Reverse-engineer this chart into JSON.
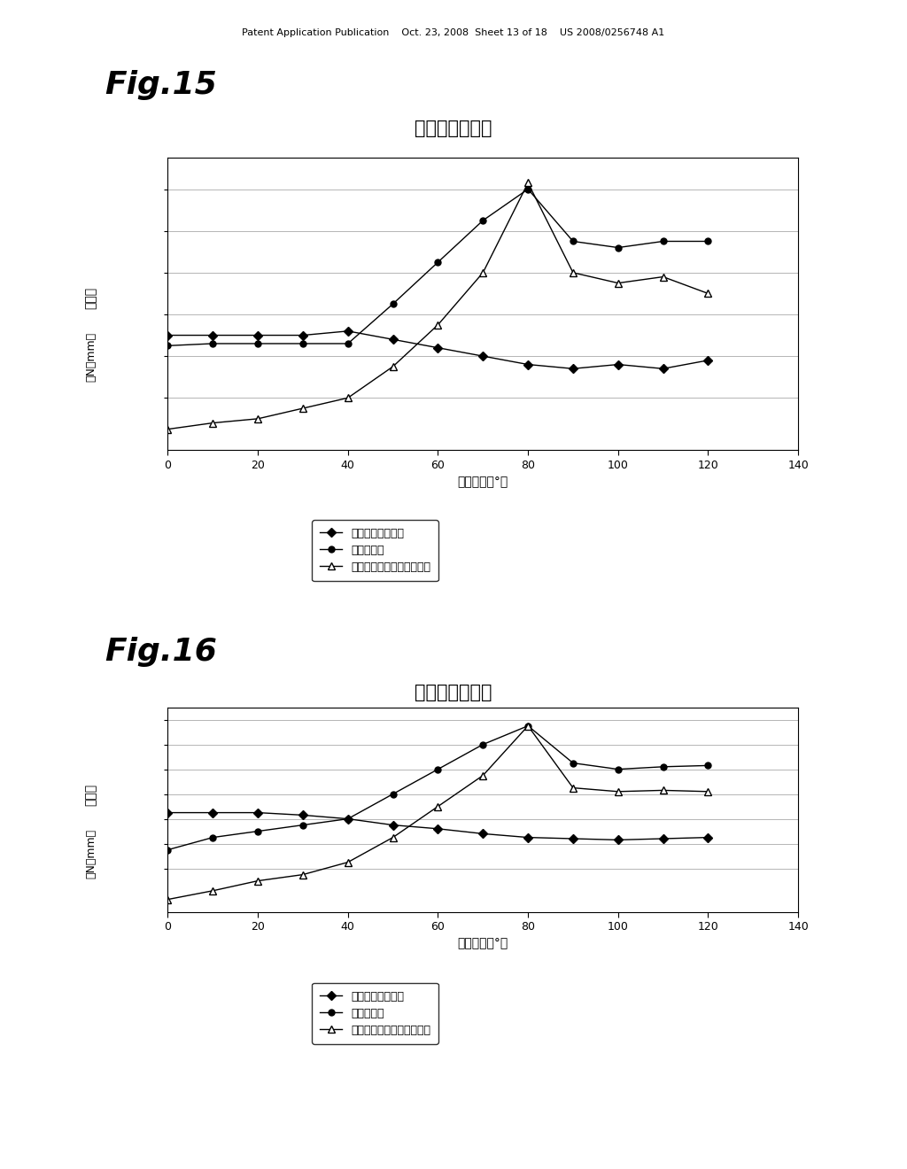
{
  "header_text": "Patent Application Publication    Oct. 23, 2008  Sheet 13 of 18    US 2008/0256748 A1",
  "fig15_label": "Fig.15",
  "fig16_label": "Fig.16",
  "chart_title": "作用トルク線図",
  "xlabel": "作動角度（°）",
  "ylabel_line1": "トルク",
  "ylabel_line2": "（N・mm）",
  "legend1": "ディスプレイ装置",
  "legend2": "ヒンジ装置",
  "legend3": "合成トルク（操作トルク）",
  "xlim": [
    0,
    140
  ],
  "xticks": [
    0,
    20,
    40,
    60,
    80,
    100,
    120,
    140
  ],
  "fig15": {
    "x": [
      0,
      10,
      20,
      30,
      40,
      50,
      60,
      70,
      80,
      90,
      100,
      110,
      120
    ],
    "display": [
      3.0,
      3.0,
      3.0,
      3.0,
      3.2,
      2.8,
      2.4,
      2.0,
      1.6,
      1.4,
      1.6,
      1.4,
      1.8
    ],
    "hinge": [
      2.5,
      2.6,
      2.6,
      2.6,
      2.6,
      4.5,
      6.5,
      8.5,
      10.0,
      7.5,
      7.2,
      7.5,
      7.5
    ],
    "composite": [
      -1.5,
      -1.2,
      -1.0,
      -0.5,
      0.0,
      1.5,
      3.5,
      6.0,
      10.3,
      6.0,
      5.5,
      5.8,
      5.0
    ],
    "ylim": [
      -2.5,
      11.5
    ],
    "yticks": [
      0,
      2,
      4,
      6,
      8,
      10
    ]
  },
  "fig16": {
    "x": [
      0,
      10,
      20,
      30,
      40,
      50,
      60,
      70,
      80,
      90,
      100,
      110,
      120
    ],
    "display": [
      4.5,
      4.5,
      4.5,
      4.3,
      4.0,
      3.5,
      3.2,
      2.8,
      2.5,
      2.4,
      2.3,
      2.4,
      2.5
    ],
    "hinge": [
      1.5,
      2.5,
      3.0,
      3.5,
      4.0,
      6.0,
      8.0,
      10.0,
      11.5,
      8.5,
      8.0,
      8.2,
      8.3
    ],
    "composite": [
      -2.5,
      -1.8,
      -1.0,
      -0.5,
      0.5,
      2.5,
      5.0,
      7.5,
      11.5,
      6.5,
      6.2,
      6.3,
      6.2
    ],
    "ylim": [
      -3.5,
      13.0
    ],
    "yticks": [
      0,
      2,
      4,
      6,
      8,
      10,
      12
    ]
  },
  "bg_color": "#ffffff"
}
